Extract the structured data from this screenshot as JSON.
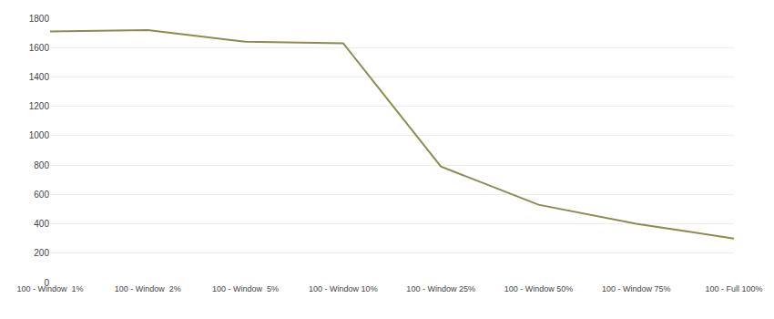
{
  "chart_data": {
    "type": "line",
    "categories": [
      "100 - Window  1%",
      "100 - Window  2%",
      "100 - Window  5%",
      "100 - Window 10%",
      "100 - Window 25%",
      "100 - Window 50%",
      "100 - Window 75%",
      "100 - Full 100%"
    ],
    "values": [
      1710,
      1720,
      1640,
      1630,
      790,
      530,
      400,
      300
    ],
    "color": "#8c8c4e",
    "ylim": [
      0,
      1800
    ],
    "yticks": [
      0,
      200,
      400,
      600,
      800,
      1000,
      1200,
      1400,
      1600,
      1800
    ],
    "grid": true
  }
}
